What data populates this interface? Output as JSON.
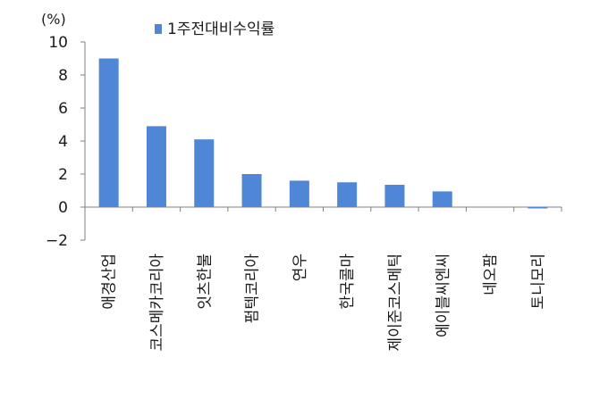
{
  "chart_data": {
    "type": "bar",
    "unit_label": "(%)",
    "categories": [
      "애경산업",
      "코스메카코리아",
      "잇츠한불",
      "펌텍코리아",
      "연우",
      "한국콜마",
      "제이준코스메틱",
      "에이블씨엔씨",
      "네오팜",
      "토니모리"
    ],
    "series": [
      {
        "name": "1주전대비수익률",
        "values": [
          9.0,
          4.9,
          4.1,
          2.0,
          1.6,
          1.5,
          1.35,
          0.95,
          0.0,
          -0.05
        ]
      }
    ],
    "ylim": [
      -2,
      10
    ],
    "yticks": [
      -2,
      0,
      2,
      4,
      6,
      8,
      10
    ],
    "ytick_labels": [
      "−2",
      "0",
      "2",
      "4",
      "6",
      "8",
      "10"
    ],
    "grid": false,
    "legend_position": "top",
    "bar_color": "#4f87d6"
  }
}
